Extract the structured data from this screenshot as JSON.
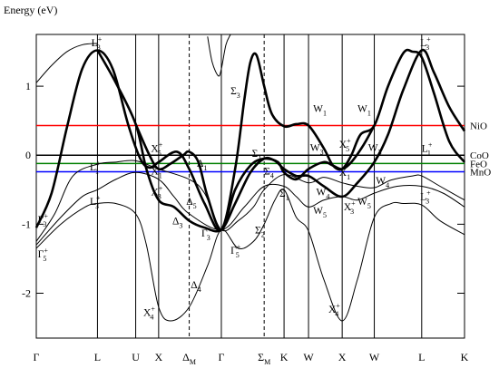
{
  "chart_data": {
    "type": "line",
    "ylabel": "Energy (eV)",
    "ylim": [
      -2.65,
      1.75
    ],
    "y_ticks": [
      -2,
      -1,
      0,
      1
    ],
    "x_ticks": [
      {
        "label": "Γ",
        "sub": ""
      },
      {
        "label": "L",
        "sub": ""
      },
      {
        "label": "U",
        "sub": ""
      },
      {
        "label": "X",
        "sub": ""
      },
      {
        "label": "Δ",
        "sub": "M"
      },
      {
        "label": "Γ",
        "sub": ""
      },
      {
        "label": "Σ",
        "sub": "M"
      },
      {
        "label": "K",
        "sub": ""
      },
      {
        "label": "W",
        "sub": ""
      },
      {
        "label": "X",
        "sub": ""
      },
      {
        "label": "W",
        "sub": ""
      },
      {
        "label": "L",
        "sub": ""
      },
      {
        "label": "K",
        "sub": ""
      }
    ],
    "x": [
      0,
      2.0,
      3.25,
      4.0,
      5.0,
      6.05,
      7.45,
      8.1,
      8.9,
      10.0,
      11.05,
      12.6,
      14.0
    ],
    "hlines": [
      {
        "name": "NiO",
        "y": 0.43,
        "color": "#ff0000"
      },
      {
        "name": "CoO",
        "y": 0.0,
        "color": "#000000"
      },
      {
        "name": "FeO",
        "y": -0.12,
        "color": "#008000"
      },
      {
        "name": "MnO",
        "y": -0.24,
        "color": "#0000ff"
      }
    ],
    "series": [
      {
        "width": 2.6,
        "points": [
          [
            0,
            -1.05
          ],
          [
            0.5,
            -0.55
          ],
          [
            1.0,
            0.4
          ],
          [
            1.5,
            1.25
          ],
          [
            2.0,
            1.52
          ],
          [
            2.5,
            1.25
          ],
          [
            3.0,
            0.45
          ],
          [
            3.4,
            -0.05
          ],
          [
            3.7,
            -0.18
          ],
          [
            4.0,
            -0.1
          ],
          [
            4.6,
            0.05
          ],
          [
            5.0,
            -0.2
          ],
          [
            5.5,
            -0.7
          ],
          [
            6.05,
            -1.08
          ],
          [
            6.5,
            -0.2
          ],
          [
            6.8,
            0.8
          ],
          [
            7.0,
            1.35
          ],
          [
            7.2,
            1.45
          ],
          [
            7.45,
            1.0
          ],
          [
            7.7,
            0.6
          ],
          [
            8.1,
            0.42
          ],
          [
            8.5,
            0.45
          ],
          [
            8.9,
            0.43
          ],
          [
            9.4,
            0.1
          ],
          [
            9.7,
            -0.15
          ],
          [
            10.0,
            -0.2
          ],
          [
            10.3,
            0.0
          ],
          [
            10.6,
            0.3
          ],
          [
            11.05,
            0.43
          ],
          [
            11.5,
            1.0
          ],
          [
            12.0,
            1.48
          ],
          [
            12.3,
            1.5
          ],
          [
            12.6,
            1.42
          ],
          [
            13.0,
            0.9
          ],
          [
            13.5,
            0.2
          ],
          [
            14.0,
            -0.1
          ]
        ]
      },
      {
        "width": 2.6,
        "points": [
          [
            2.0,
            1.52
          ],
          [
            2.6,
            1.05
          ],
          [
            3.25,
            0.45
          ],
          [
            3.6,
            -0.2
          ],
          [
            4.0,
            -0.65
          ],
          [
            4.5,
            -0.75
          ],
          [
            5.0,
            -0.95
          ],
          [
            5.5,
            -1.05
          ],
          [
            6.05,
            -1.08
          ],
          [
            6.5,
            -0.7
          ],
          [
            7.0,
            -0.25
          ],
          [
            7.45,
            -0.05
          ],
          [
            7.8,
            -0.08
          ],
          [
            8.1,
            -0.2
          ],
          [
            8.5,
            -0.3
          ],
          [
            8.9,
            -0.3
          ],
          [
            9.4,
            -0.45
          ],
          [
            10.0,
            -0.6
          ],
          [
            10.5,
            -0.4
          ],
          [
            11.05,
            -0.1
          ],
          [
            11.5,
            0.3
          ],
          [
            12.0,
            0.95
          ],
          [
            12.6,
            1.52
          ],
          [
            13.0,
            1.2
          ],
          [
            13.5,
            0.7
          ],
          [
            14.0,
            0.35
          ]
        ]
      },
      {
        "width": 2.6,
        "points": [
          [
            3.25,
            0.45
          ],
          [
            3.7,
            0.0
          ],
          [
            4.0,
            -0.2
          ],
          [
            4.4,
            -0.12
          ],
          [
            4.8,
            0.0
          ],
          [
            5.0,
            0.05
          ],
          [
            5.3,
            -0.1
          ],
          [
            5.6,
            -0.6
          ],
          [
            6.05,
            -1.08
          ],
          [
            6.5,
            -0.5
          ],
          [
            7.0,
            -0.15
          ],
          [
            7.45,
            -0.05
          ],
          [
            7.9,
            -0.1
          ],
          [
            8.1,
            -0.25
          ],
          [
            8.5,
            -0.35
          ],
          [
            8.9,
            -0.2
          ],
          [
            9.4,
            -0.1
          ],
          [
            9.7,
            -0.15
          ],
          [
            10.0,
            -0.2
          ],
          [
            10.3,
            -0.1
          ],
          [
            10.7,
            0.15
          ],
          [
            11.05,
            0.43
          ]
        ]
      },
      {
        "width": 1.0,
        "points": [
          [
            0,
            -1.25
          ],
          [
            0.6,
            -0.85
          ],
          [
            1.2,
            -0.3
          ],
          [
            2.0,
            -0.13
          ],
          [
            2.6,
            -0.1
          ],
          [
            3.25,
            -0.08
          ],
          [
            4.0,
            -0.2
          ],
          [
            5.0,
            -0.35
          ],
          [
            5.5,
            -0.55
          ],
          [
            6.05,
            -1.08
          ],
          [
            6.6,
            -0.95
          ],
          [
            7.1,
            -0.75
          ],
          [
            7.45,
            -0.5
          ],
          [
            8.1,
            -0.28
          ],
          [
            8.9,
            -0.4
          ],
          [
            9.4,
            -0.32
          ],
          [
            10.0,
            -0.4
          ],
          [
            10.5,
            -0.45
          ],
          [
            11.05,
            -0.47
          ],
          [
            11.6,
            -0.36
          ],
          [
            12.3,
            -0.3
          ],
          [
            12.6,
            -0.3
          ],
          [
            13.2,
            -0.45
          ],
          [
            14.0,
            -0.65
          ]
        ]
      },
      {
        "width": 1.0,
        "points": [
          [
            0,
            -1.3
          ],
          [
            0.8,
            -0.9
          ],
          [
            1.5,
            -0.6
          ],
          [
            2.0,
            -0.5
          ],
          [
            2.6,
            -0.35
          ],
          [
            3.25,
            -0.25
          ],
          [
            4.0,
            -0.35
          ],
          [
            4.5,
            -0.6
          ],
          [
            5.0,
            -0.85
          ],
          [
            6.05,
            -1.08
          ],
          [
            6.8,
            -0.75
          ],
          [
            7.45,
            -0.45
          ],
          [
            8.1,
            -0.45
          ],
          [
            8.5,
            -0.6
          ],
          [
            8.9,
            -0.75
          ],
          [
            9.4,
            -0.65
          ],
          [
            10.0,
            -0.6
          ],
          [
            10.5,
            -0.65
          ],
          [
            11.05,
            -0.55
          ],
          [
            11.8,
            -0.45
          ],
          [
            12.6,
            -0.45
          ],
          [
            13.3,
            -0.55
          ],
          [
            14.0,
            -0.75
          ]
        ]
      },
      {
        "width": 1.0,
        "points": [
          [
            0,
            -1.35
          ],
          [
            0.8,
            -1.0
          ],
          [
            1.6,
            -0.75
          ],
          [
            2.0,
            -0.7
          ],
          [
            2.6,
            -0.7
          ],
          [
            3.25,
            -0.85
          ],
          [
            3.6,
            -1.3
          ],
          [
            4.0,
            -2.2
          ],
          [
            4.4,
            -2.4
          ],
          [
            5.0,
            -2.2
          ],
          [
            5.6,
            -1.6
          ],
          [
            6.05,
            -1.08
          ],
          [
            6.6,
            -1.35
          ],
          [
            7.1,
            -1.25
          ],
          [
            7.45,
            -1.0
          ],
          [
            7.8,
            -0.65
          ],
          [
            8.1,
            -0.5
          ],
          [
            8.5,
            -0.9
          ],
          [
            8.9,
            -1.1
          ],
          [
            9.4,
            -1.8
          ],
          [
            10.0,
            -2.4
          ],
          [
            10.5,
            -1.8
          ],
          [
            11.05,
            -0.9
          ],
          [
            11.6,
            -0.7
          ],
          [
            12.0,
            -0.7
          ],
          [
            12.6,
            -0.72
          ],
          [
            13.2,
            -0.95
          ],
          [
            14.0,
            -1.15
          ]
        ]
      },
      {
        "width": 1.0,
        "points": [
          [
            0,
            1.05
          ],
          [
            0.5,
            1.3
          ],
          [
            1.0,
            1.5
          ],
          [
            1.5,
            1.6
          ],
          [
            2.0,
            1.62
          ]
        ]
      },
      {
        "width": 1.0,
        "points": [
          [
            5.6,
            1.72
          ],
          [
            5.75,
            1.35
          ],
          [
            5.95,
            1.15
          ],
          [
            6.05,
            1.25
          ],
          [
            6.2,
            1.6
          ],
          [
            6.35,
            1.75
          ]
        ]
      }
    ],
    "labels": [
      {
        "text": "L",
        "sup": "+",
        "sub": "3",
        "x": 1.8,
        "y": 1.58
      },
      {
        "text": "Σ",
        "sup": "",
        "sub": "3",
        "x": 6.35,
        "y": 0.88
      },
      {
        "text": "X",
        "sup": "+",
        "sub": "5",
        "x": 3.75,
        "y": 0.05
      },
      {
        "text": "Δ",
        "sup": "",
        "sub": "1",
        "x": 5.25,
        "y": -0.17
      },
      {
        "text": "L",
        "sup": "+",
        "sub": "1",
        "x": 1.75,
        "y": -0.22
      },
      {
        "text": "X",
        "sup": "",
        "sub": "1",
        "x": 3.75,
        "y": -0.28
      },
      {
        "text": "X",
        "sup": "+",
        "sub": "3",
        "x": 3.75,
        "y": -0.58
      },
      {
        "text": "Δ",
        "sup": "",
        "sub": "5",
        "x": 4.9,
        "y": -0.72
      },
      {
        "text": "L",
        "sup": "+",
        "sub": "3",
        "x": 1.75,
        "y": -0.72
      },
      {
        "text": "Δ",
        "sup": "",
        "sub": "3",
        "x": 4.45,
        "y": -1.0
      },
      {
        "text": "Γ",
        "sup": "+",
        "sub": "3",
        "x": 0.05,
        "y": -0.98
      },
      {
        "text": "Γ",
        "sup": "+",
        "sub": "5",
        "x": 0.05,
        "y": -1.48
      },
      {
        "text": "Γ",
        "sup": "+",
        "sub": "3",
        "x": 5.4,
        "y": -1.18
      },
      {
        "text": "Γ",
        "sup": "+",
        "sub": "5",
        "x": 6.35,
        "y": -1.43
      },
      {
        "text": "Δ",
        "sup": "",
        "sub": "4",
        "x": 5.05,
        "y": -1.93
      },
      {
        "text": "X",
        "sup": "+",
        "sub": "4",
        "x": 3.5,
        "y": -2.33
      },
      {
        "text": "Σ",
        "sup": "",
        "sub": "1",
        "x": 7.05,
        "y": -0.02
      },
      {
        "text": "Σ",
        "sup": "",
        "sub": "4",
        "x": 7.45,
        "y": -0.28
      },
      {
        "text": "Σ",
        "sup": "",
        "sub": "1",
        "x": 7.95,
        "y": -0.6
      },
      {
        "text": "Σ",
        "sup": "",
        "sub": "2",
        "x": 7.15,
        "y": -1.13
      },
      {
        "text": "W",
        "sup": "",
        "sub": "1",
        "x": 9.05,
        "y": 0.63
      },
      {
        "text": "W",
        "sup": "",
        "sub": "1",
        "x": 10.5,
        "y": 0.63
      },
      {
        "text": "W",
        "sup": "",
        "sub": "3",
        "x": 8.95,
        "y": 0.06
      },
      {
        "text": "X",
        "sup": "+",
        "sub": "5",
        "x": 9.9,
        "y": 0.11
      },
      {
        "text": "W",
        "sup": "",
        "sub": "3",
        "x": 10.85,
        "y": 0.06
      },
      {
        "text": "X",
        "sup": "",
        "sub": "1",
        "x": 9.9,
        "y": -0.3
      },
      {
        "text": "W",
        "sup": "",
        "sub": "4",
        "x": 11.1,
        "y": -0.42
      },
      {
        "text": "W",
        "sup": "",
        "sub": "4",
        "x": 9.15,
        "y": -0.58
      },
      {
        "text": "W",
        "sup": "",
        "sub": "5",
        "x": 9.05,
        "y": -0.85
      },
      {
        "text": "X",
        "sup": "+",
        "sub": "3",
        "x": 10.05,
        "y": -0.8
      },
      {
        "text": "W",
        "sup": "",
        "sub": "5",
        "x": 10.5,
        "y": -0.72
      },
      {
        "text": "X",
        "sup": "+",
        "sub": "4",
        "x": 9.55,
        "y": -2.28
      },
      {
        "text": "L",
        "sup": "+",
        "sub": "3",
        "x": 12.55,
        "y": 1.58
      },
      {
        "text": "L",
        "sup": "+",
        "sub": "1",
        "x": 12.6,
        "y": 0.05
      },
      {
        "text": "L",
        "sup": "+",
        "sub": "3",
        "x": 12.55,
        "y": -0.65
      }
    ]
  }
}
